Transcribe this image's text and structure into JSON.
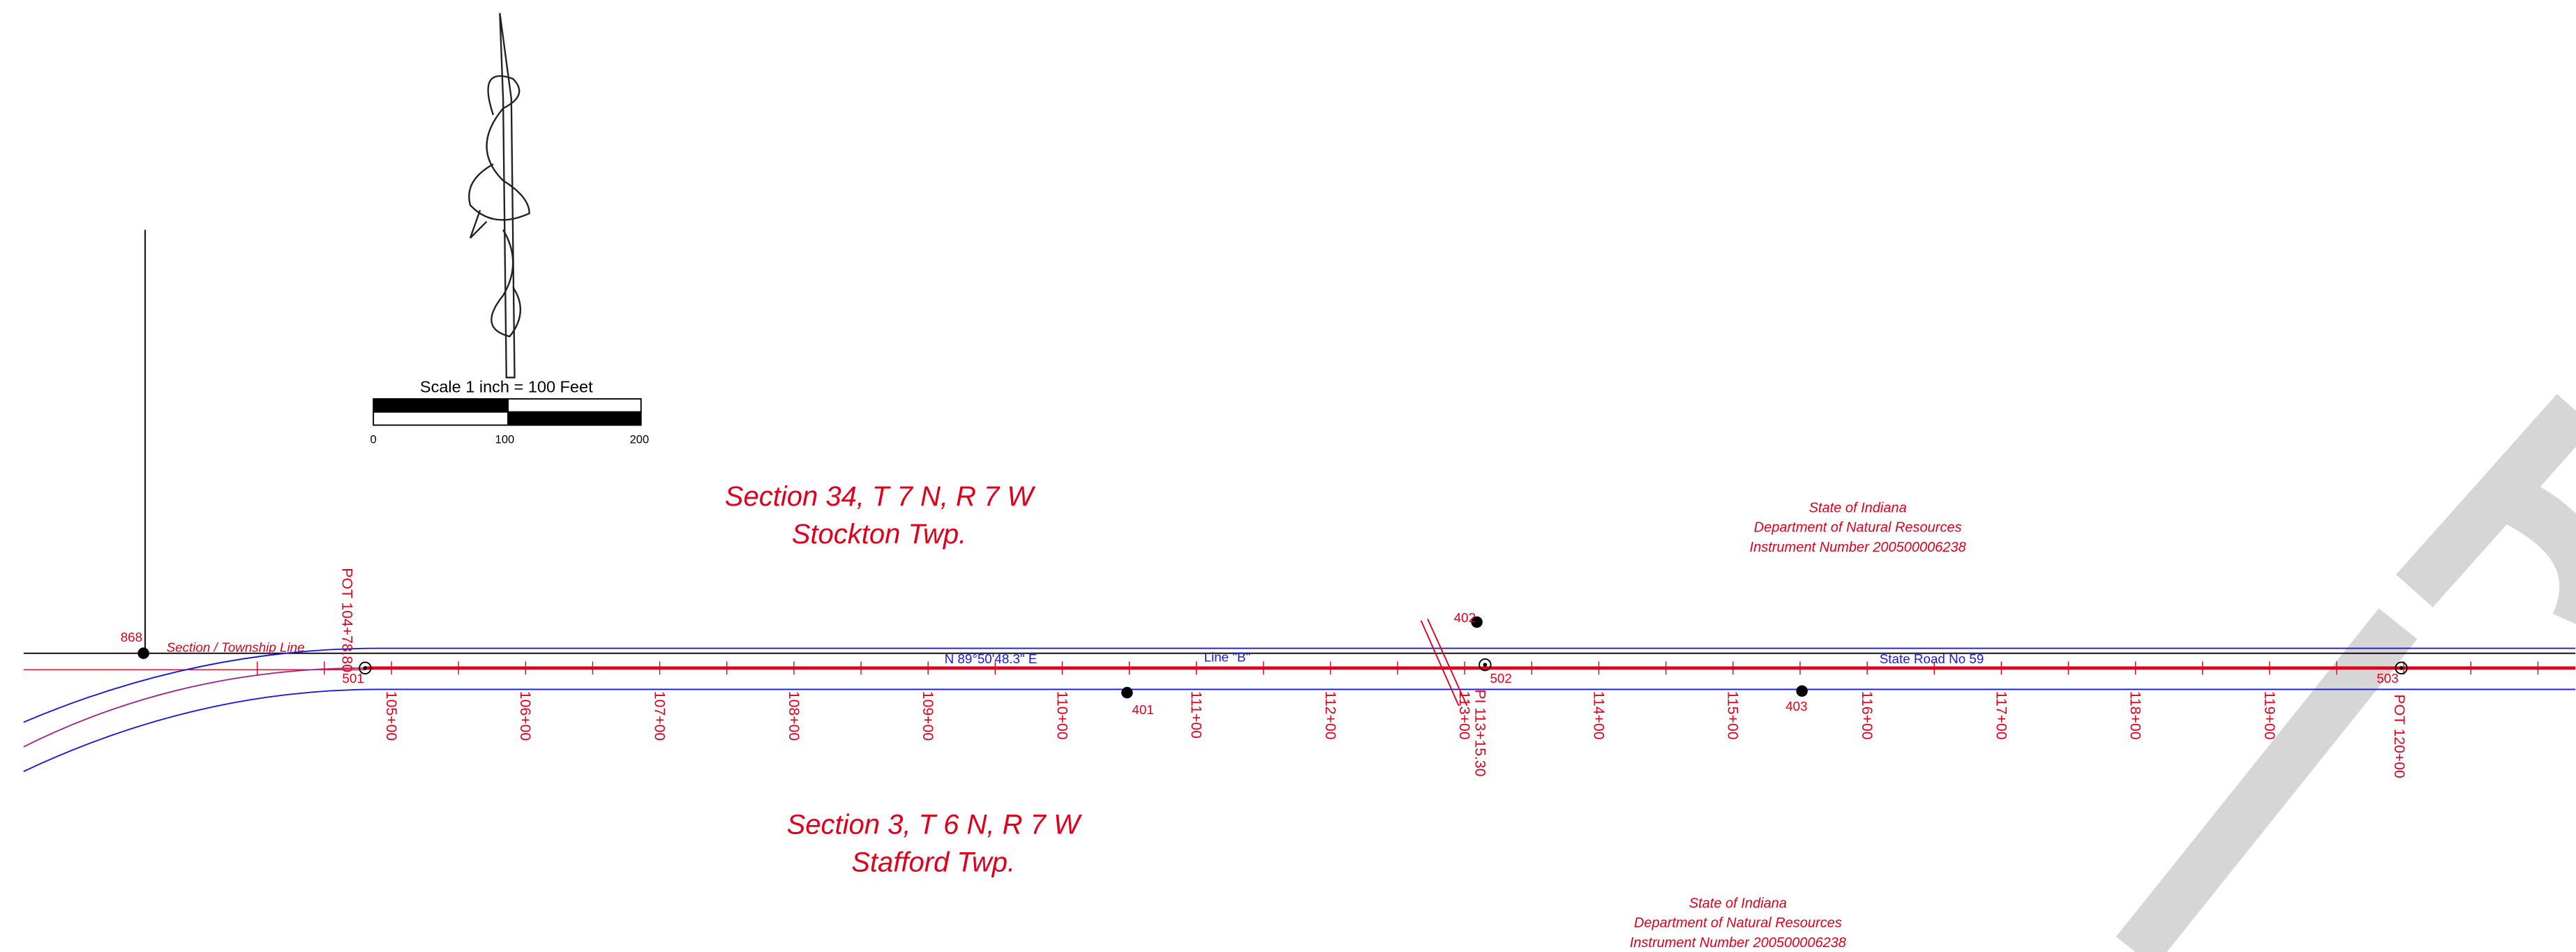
{
  "scale_bar": {
    "title": "Scale 1 inch = 100 Feet",
    "labels": [
      "0",
      "100",
      "200"
    ]
  },
  "sections": [
    {
      "name": "Section 34, T 7 N, R 7 W",
      "township": "Stockton Twp."
    },
    {
      "name": "Section 3, T 6 N, R 7 W",
      "township": "Stafford Twp."
    }
  ],
  "owners": [
    {
      "lines": [
        "State of Indiana",
        "Department of Natural Resources",
        "Instrument Number 200500006238"
      ]
    },
    {
      "lines": [
        "State of Indiana",
        "Department of Natural Resources",
        "Instrument Number 200500006238"
      ]
    }
  ],
  "alignment": {
    "start": "POT 104+78.80",
    "pi": "PI 113+15.30",
    "end": "POT 120+00",
    "bearing": "N 89°50'48.3\" E",
    "line_name": "Line \"B\"",
    "road": "State Road No 59",
    "section_line": "Section / Township Line",
    "stations": [
      "105+00",
      "106+00",
      "107+00",
      "108+00",
      "109+00",
      "110+00",
      "111+00",
      "112+00",
      "113+00",
      "114+00",
      "115+00",
      "116+00",
      "117+00",
      "118+00",
      "119+00"
    ]
  },
  "points": [
    "868",
    "501",
    "502",
    "503",
    "401",
    "402",
    "403"
  ]
}
